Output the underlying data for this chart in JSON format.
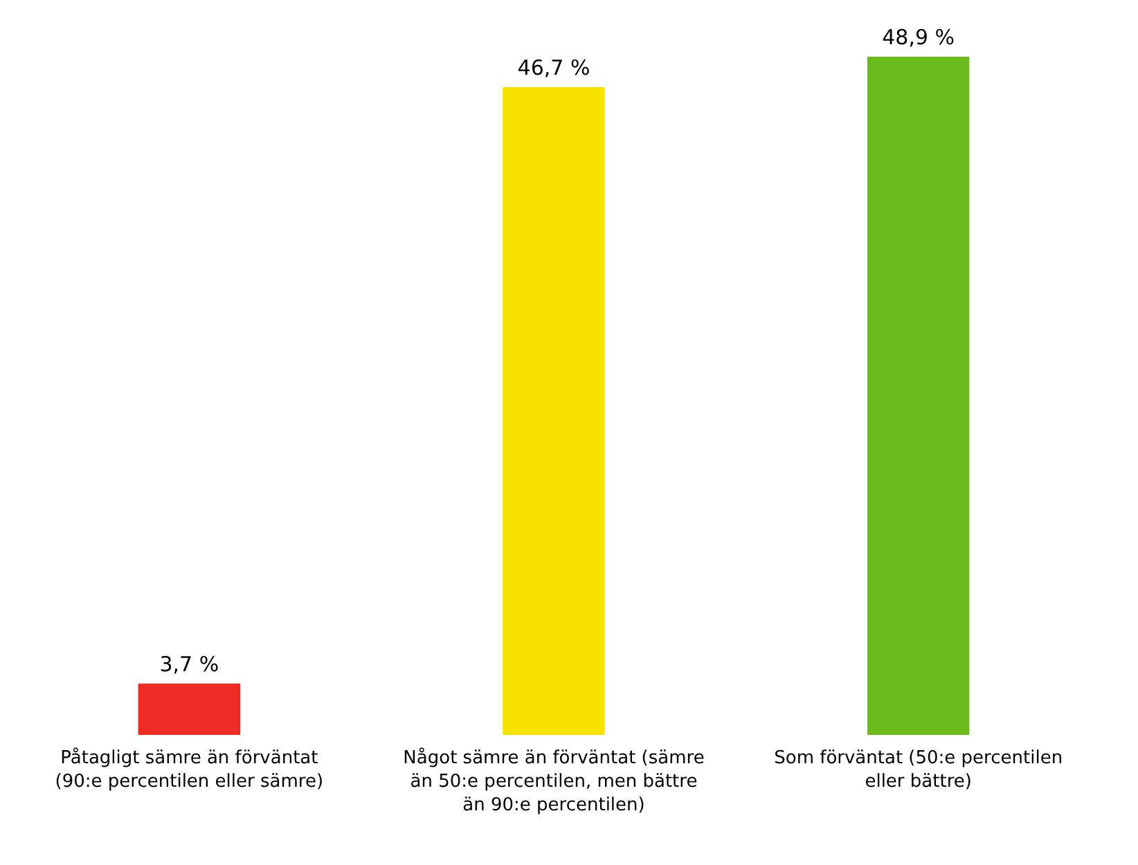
{
  "chart_data": {
    "type": "bar",
    "categories": [
      "Påtagligt sämre än förväntat (90:e percentilen eller sämre)",
      "Något sämre än förväntat (sämre än 50:e percentilen, men bättre än 90:e percentilen)",
      "Som förväntat (50:e percentilen eller bättre)"
    ],
    "values": [
      3.7,
      46.7,
      48.9
    ],
    "colors": [
      "#ee2a24",
      "#f7e200",
      "#6cbb1c"
    ],
    "value_labels": [
      "3,7 %",
      "46,7 %",
      "48,9 %"
    ],
    "grid": false
  }
}
